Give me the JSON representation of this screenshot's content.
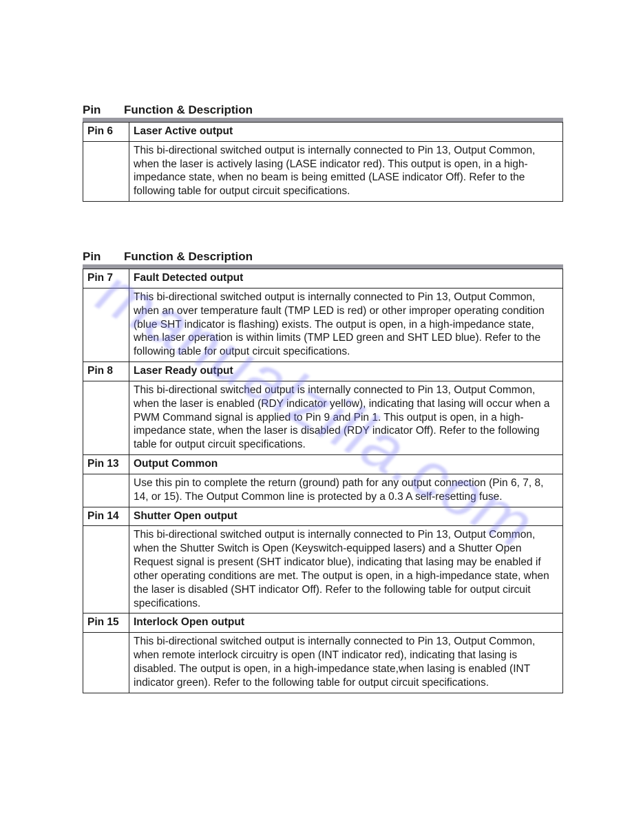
{
  "watermark_text": "manualzilla.com",
  "watermark_color": "rgba(120,120,245,0.35)",
  "header": {
    "col_pin": "Pin",
    "col_desc": "Function & Description"
  },
  "tables": [
    {
      "rows": [
        {
          "pin": "Pin 6",
          "title": "Laser Active output",
          "desc": "This bi-directional switched output is internally connected to Pin 13, Output Common, when the laser is actively lasing (LASE indicator red). This output is open, in a high-impedance state, when no beam is being emitted (LASE indicator Off). Refer to the following table for output circuit specifications."
        }
      ]
    },
    {
      "rows": [
        {
          "pin": "Pin 7",
          "title": "Fault Detected output",
          "desc": "This bi-directional switched output is internally connected to Pin 13, Output Common, when an over temperature fault (TMP LED is red) or other improper operating condition (blue SHT indicator is flashing) exists. The output is open, in a high-impedance state, when laser operation is within limits (TMP LED green and SHT LED blue). Refer to the following table for output circuit specifications."
        },
        {
          "pin": "Pin 8",
          "title": "Laser Ready output",
          "desc": "This bi-directional switched output is internally connected to Pin 13, Output Common, when the laser is enabled (RDY indicator yellow), indicating that lasing will occur when a PWM Command signal is applied to Pin 9 and Pin 1. This output is open, in a high-impedance state, when the laser is disabled (RDY indicator Off). Refer to the following table for output circuit specifications."
        },
        {
          "pin": "Pin 13",
          "title": "Output Common",
          "desc": "Use this pin to complete the return (ground) path for any output connection (Pin 6, 7, 8, 14, or 15). The Output Common line is protected by a 0.3 A self-resetting fuse."
        },
        {
          "pin": "Pin 14",
          "title": "Shutter Open output",
          "desc": "This bi-directional switched output is internally connected to Pin 13, Output Common, when the Shutter Switch is Open (Keyswitch-equipped lasers) and a Shutter Open Request signal is present (SHT indicator blue), indicating that lasing may be enabled if other operating conditions are met. The output is open, in a high-impedance state, when the laser is disabled (SHT indicator Off). Refer to the following table for output circuit specifications."
        },
        {
          "pin": "Pin 15",
          "title": "Interlock Open output",
          "desc": "This bi-directional switched output is internally connected to Pin 13, Output Common, when remote interlock circuitry is open (INT indicator red), indicating that lasing is disabled. The output is open, in a high-impedance state,when lasing is enabled (INT indicator green). Refer to the following table for output circuit specifications."
        }
      ]
    }
  ]
}
